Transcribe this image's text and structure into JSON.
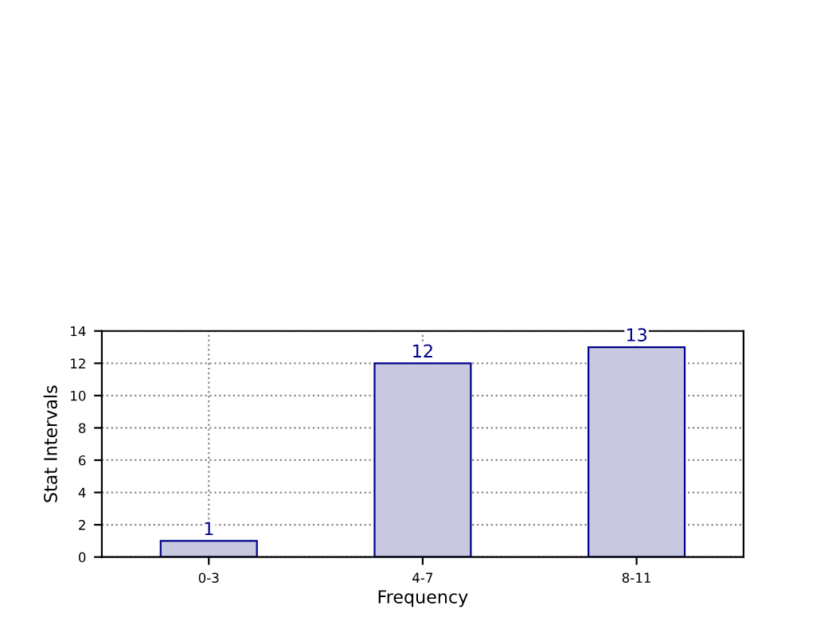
{
  "chart_data": {
    "type": "bar",
    "xlabel": "Frequency",
    "ylabel": "Stat Intervals",
    "categories": [
      "0-3",
      "4-7",
      "8-11"
    ],
    "values": [
      1,
      12,
      13
    ],
    "color": "#c8c8e0",
    "ylim": [
      0,
      14
    ],
    "yticks": [
      0,
      2,
      4,
      6,
      8,
      10,
      12,
      14
    ],
    "grid": true,
    "data_labels": true
  }
}
